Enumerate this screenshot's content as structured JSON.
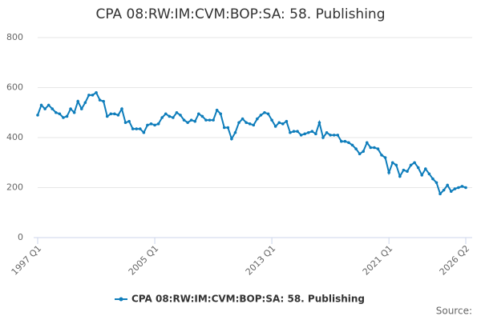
{
  "chart_data": {
    "type": "line",
    "title": "CPA 08:RW:IM:CVM:BOP:SA: 58. Publishing",
    "source": "Source:",
    "categories": [
      "1997 Q1",
      null,
      null,
      null,
      null,
      null,
      null,
      null,
      null,
      null,
      null,
      null,
      null,
      null,
      null,
      null,
      null,
      null,
      null,
      null,
      null,
      null,
      null,
      null,
      null,
      null,
      null,
      null,
      null,
      null,
      null,
      null,
      "2005 Q1",
      null,
      null,
      null,
      null,
      null,
      null,
      null,
      null,
      null,
      null,
      null,
      null,
      null,
      null,
      null,
      null,
      null,
      null,
      null,
      null,
      null,
      null,
      null,
      null,
      null,
      null,
      null,
      null,
      null,
      null,
      null,
      "2013 Q1",
      null,
      null,
      null,
      null,
      null,
      null,
      null,
      null,
      null,
      null,
      null,
      null,
      null,
      null,
      null,
      null,
      null,
      null,
      null,
      null,
      null,
      null,
      null,
      null,
      null,
      null,
      null,
      null,
      null,
      null,
      null,
      "2021 Q1",
      null,
      null,
      null,
      null,
      null,
      null,
      null,
      null,
      null,
      null,
      null,
      null,
      null,
      null,
      null,
      null,
      null,
      null,
      null,
      null,
      "2026 Q2"
    ],
    "series": [
      {
        "name": "CPA 08:RW:IM:CVM:BOP:SA: 58. Publishing",
        "color": "#0e7dbb",
        "values": [
          490,
          530,
          515,
          530,
          515,
          500,
          495,
          480,
          485,
          515,
          500,
          545,
          515,
          540,
          570,
          570,
          580,
          550,
          545,
          485,
          495,
          495,
          490,
          515,
          460,
          465,
          435,
          435,
          435,
          420,
          450,
          455,
          450,
          455,
          480,
          495,
          485,
          480,
          500,
          490,
          470,
          460,
          470,
          465,
          495,
          485,
          470,
          470,
          470,
          510,
          495,
          440,
          440,
          395,
          420,
          460,
          475,
          460,
          455,
          450,
          475,
          490,
          500,
          495,
          470,
          445,
          460,
          455,
          465,
          420,
          425,
          425,
          410,
          415,
          420,
          425,
          415,
          460,
          400,
          420,
          410,
          410,
          410,
          385,
          385,
          380,
          370,
          355,
          335,
          345,
          380,
          360,
          360,
          355,
          330,
          320,
          260,
          300,
          290,
          245,
          270,
          265,
          290,
          300,
          280,
          250,
          275,
          255,
          235,
          220,
          175,
          190,
          210,
          185,
          195,
          200,
          205,
          200
        ]
      }
    ],
    "ylim": [
      0,
      800
    ],
    "yticks": [
      0,
      200,
      400,
      600,
      800
    ],
    "grid": true
  }
}
